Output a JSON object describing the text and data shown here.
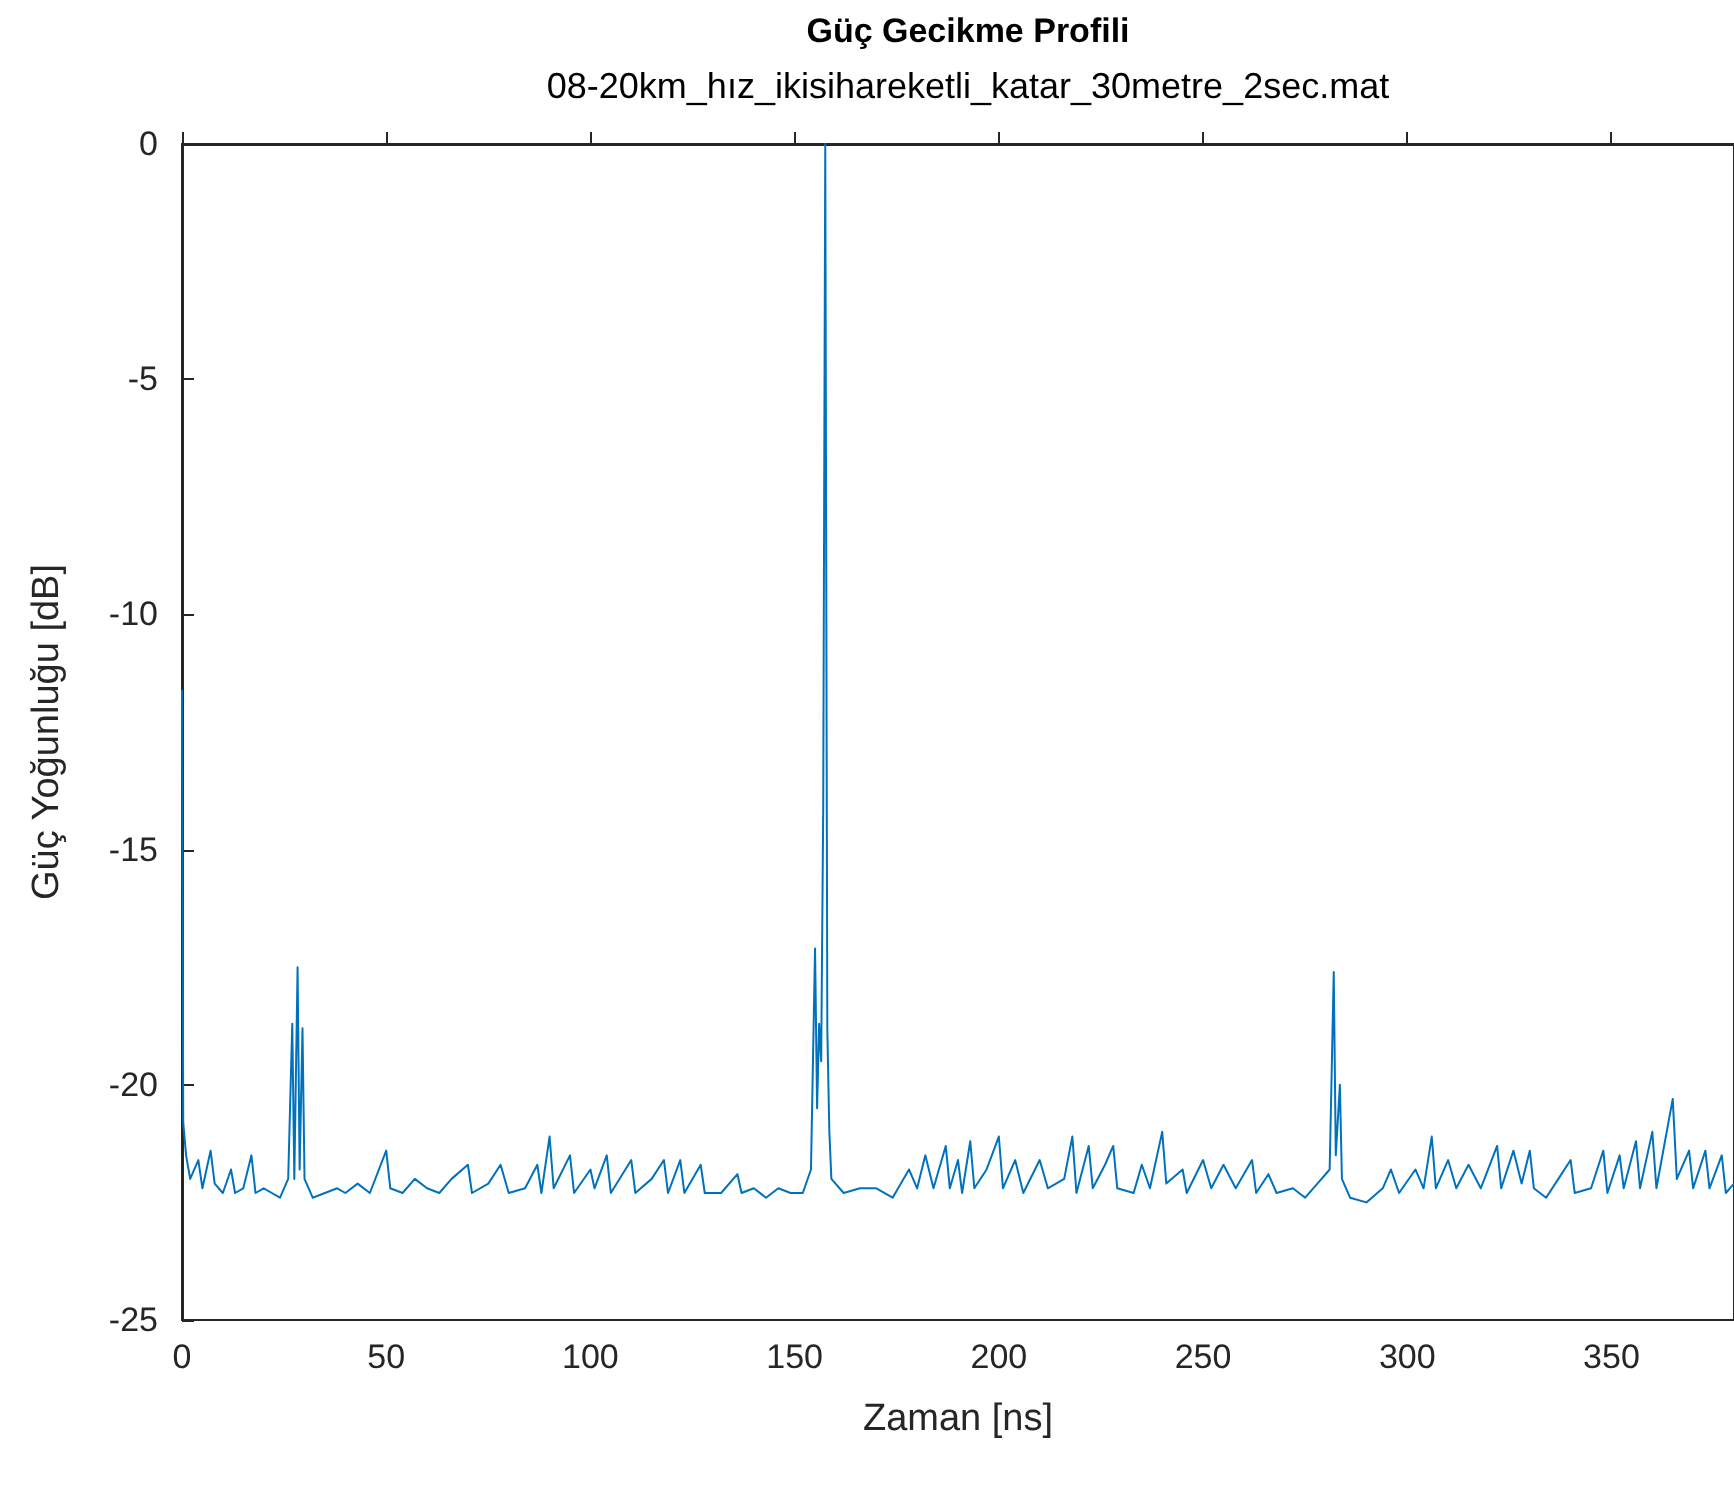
{
  "chart_data": {
    "type": "line",
    "title": "Güç Gecikme Profili",
    "subtitle": "08-20km_hız_ikisihareketli_katar_30metre_2sec.mat",
    "xlabel": "Zaman [ns]",
    "ylabel": "Güç Yoğunluğu [dB]",
    "xlim": [
      0,
      380
    ],
    "xticks": [
      0,
      50,
      100,
      150,
      200,
      250,
      300,
      350
    ],
    "ylim": [
      -25,
      0
    ],
    "yticks": [
      -25,
      -20,
      -15,
      -10,
      -5,
      0
    ],
    "marker": "none",
    "line_style": "solid",
    "series": [
      {
        "color": "#0072bd",
        "x": [
          0,
          0.3,
          1,
          2,
          4,
          5,
          7,
          8,
          10,
          12,
          13,
          15,
          17,
          18,
          20,
          22,
          24,
          26,
          27,
          27.5,
          28.3,
          28.8,
          29.5,
          30,
          32,
          35,
          38,
          40,
          43,
          46,
          50,
          51,
          54,
          57,
          60,
          63,
          66,
          70,
          71,
          75,
          78,
          80,
          84,
          87,
          88,
          90,
          91,
          95,
          96,
          100,
          101,
          104,
          105,
          110,
          111,
          115,
          118,
          119,
          122,
          123,
          127,
          128,
          132,
          136,
          137,
          140,
          143,
          146,
          149,
          152,
          154,
          155,
          155.5,
          156,
          156.5,
          157,
          157.5,
          158,
          158.5,
          159,
          162,
          166,
          170,
          174,
          178,
          180,
          182,
          184,
          187,
          188,
          190,
          191,
          193,
          194,
          197,
          200,
          201,
          204,
          206,
          210,
          212,
          216,
          218,
          219,
          222,
          223,
          226,
          228,
          229,
          233,
          235,
          237,
          240,
          241,
          245,
          246,
          250,
          252,
          255,
          258,
          262,
          263,
          266,
          268,
          272,
          275,
          278,
          281,
          282,
          282.5,
          283.5,
          284,
          286,
          290,
          294,
          296,
          298,
          302,
          304,
          306,
          307,
          310,
          312,
          315,
          318,
          322,
          323,
          326,
          328,
          330,
          331,
          334,
          337,
          340,
          341,
          345,
          348,
          349,
          352,
          353,
          356,
          357,
          360,
          361,
          365,
          366,
          369,
          370,
          373,
          374,
          377,
          378,
          380
        ],
        "values": [
          -11.6,
          -20.8,
          -21.5,
          -22.0,
          -21.6,
          -22.2,
          -21.4,
          -22.1,
          -22.3,
          -21.8,
          -22.3,
          -22.2,
          -21.5,
          -22.3,
          -22.2,
          -22.3,
          -22.4,
          -22.0,
          -18.7,
          -22.0,
          -17.5,
          -21.8,
          -18.8,
          -22.0,
          -22.4,
          -22.3,
          -22.2,
          -22.3,
          -22.1,
          -22.3,
          -21.4,
          -22.2,
          -22.3,
          -22.0,
          -22.2,
          -22.3,
          -22.0,
          -21.7,
          -22.3,
          -22.1,
          -21.7,
          -22.3,
          -22.2,
          -21.7,
          -22.3,
          -21.1,
          -22.2,
          -21.5,
          -22.3,
          -21.8,
          -22.2,
          -21.5,
          -22.3,
          -21.6,
          -22.3,
          -22.0,
          -21.6,
          -22.3,
          -21.6,
          -22.3,
          -21.7,
          -22.3,
          -22.3,
          -21.9,
          -22.3,
          -22.2,
          -22.4,
          -22.2,
          -22.3,
          -22.3,
          -21.8,
          -17.1,
          -20.5,
          -18.7,
          -19.5,
          -14.1,
          0,
          -18.8,
          -21.0,
          -22.0,
          -22.3,
          -22.2,
          -22.2,
          -22.4,
          -21.8,
          -22.2,
          -21.5,
          -22.2,
          -21.3,
          -22.2,
          -21.6,
          -22.3,
          -21.2,
          -22.2,
          -21.8,
          -21.1,
          -22.2,
          -21.6,
          -22.3,
          -21.6,
          -22.2,
          -22.0,
          -21.1,
          -22.3,
          -21.3,
          -22.2,
          -21.7,
          -21.3,
          -22.2,
          -22.3,
          -21.7,
          -22.2,
          -21.0,
          -22.1,
          -21.8,
          -22.3,
          -21.6,
          -22.2,
          -21.7,
          -22.2,
          -21.6,
          -22.3,
          -21.9,
          -22.3,
          -22.2,
          -22.4,
          -22.1,
          -21.8,
          -17.6,
          -21.5,
          -20.0,
          -22.0,
          -22.4,
          -22.5,
          -22.2,
          -21.8,
          -22.3,
          -21.8,
          -22.2,
          -21.1,
          -22.2,
          -21.6,
          -22.2,
          -21.7,
          -22.2,
          -21.3,
          -22.2,
          -21.4,
          -22.1,
          -21.4,
          -22.2,
          -22.4,
          -22.0,
          -21.6,
          -22.3,
          -22.2,
          -21.4,
          -22.3,
          -21.5,
          -22.2,
          -21.2,
          -22.2,
          -21.0,
          -22.2,
          -20.3,
          -22.0,
          -21.4,
          -22.2,
          -21.4,
          -22.2,
          -21.5,
          -22.3,
          -22.1
        ]
      }
    ]
  }
}
